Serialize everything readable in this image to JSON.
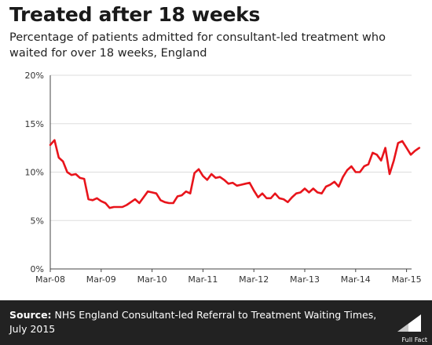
{
  "header": {
    "title": "Treated after 18 weeks",
    "subtitle": "Percentage of patients admitted for consultant-led treatment who waited for over 18 weeks, England"
  },
  "footer": {
    "source_label": "Source:",
    "source_text": "NHS England Consultant-led Referral to Treatment Waiting Times, July 2015",
    "logo_text": "Full Fact"
  },
  "colors": {
    "line": "#e8141b",
    "grid": "#dddddd",
    "footer_bg": "#222222"
  },
  "chart_data": {
    "type": "line",
    "title": "Treated after 18 weeks",
    "subtitle": "Percentage of patients admitted for consultant-led treatment who waited for over 18 weeks, England",
    "xlabel": "",
    "ylabel": "",
    "ylim": [
      0,
      20
    ],
    "y_ticks": [
      "0%",
      "5%",
      "10%",
      "15%",
      "20%"
    ],
    "x_ticks": [
      "Mar-08",
      "Mar-09",
      "Mar-10",
      "Mar-11",
      "Mar-12",
      "Mar-13",
      "Mar-14",
      "Mar-15"
    ],
    "grid": "horizontal",
    "start_month": "Mar-08",
    "series": [
      {
        "name": "",
        "color": "#e8141b",
        "values": [
          12.8,
          13.3,
          11.5,
          11.1,
          10.0,
          9.7,
          9.8,
          9.4,
          9.3,
          7.2,
          7.1,
          7.3,
          7.0,
          6.8,
          6.3,
          6.4,
          6.4,
          6.4,
          6.6,
          6.9,
          7.2,
          6.8,
          7.4,
          8.0,
          7.9,
          7.8,
          7.1,
          6.9,
          6.8,
          6.8,
          7.5,
          7.6,
          8.0,
          7.8,
          9.9,
          10.3,
          9.6,
          9.2,
          9.8,
          9.4,
          9.5,
          9.2,
          8.8,
          8.9,
          8.6,
          8.7,
          8.8,
          8.9,
          8.1,
          7.4,
          7.8,
          7.3,
          7.3,
          7.8,
          7.3,
          7.2,
          6.9,
          7.4,
          7.8,
          7.9,
          8.3,
          7.9,
          8.3,
          7.9,
          7.8,
          8.5,
          8.7,
          9.0,
          8.5,
          9.5,
          10.2,
          10.6,
          10.0,
          10.0,
          10.6,
          10.8,
          12.0,
          11.8,
          11.2,
          12.5,
          9.8,
          11.2,
          13.0,
          13.2,
          12.5,
          11.8,
          12.2,
          12.5
        ]
      }
    ]
  }
}
